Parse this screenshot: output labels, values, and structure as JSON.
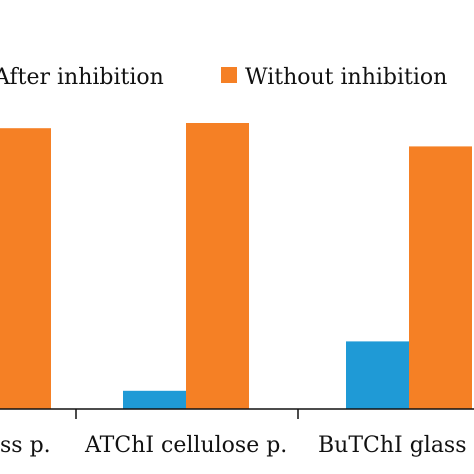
{
  "chart_data": {
    "type": "bar",
    "title": "",
    "xlabel": "",
    "ylabel": "",
    "categories": [
      "ATChI glass p.",
      "ATChI cellulose p.",
      "BuTChI glass p."
    ],
    "category_labels_visible": [
      "ss p.",
      "ATChI cellulose p.",
      "BuTChI glass"
    ],
    "series": [
      {
        "name": "After inhibition",
        "color": "#1f9ad6",
        "values": [
          0,
          7,
          26
        ]
      },
      {
        "name": "Without inhibition",
        "color": "#f58025",
        "values": [
          108,
          110,
          101
        ]
      }
    ],
    "ylim": [
      0,
      120
    ],
    "grid": false,
    "legend_position": "top"
  },
  "colors": {
    "axis": "#111111",
    "background": "#ffffff"
  }
}
